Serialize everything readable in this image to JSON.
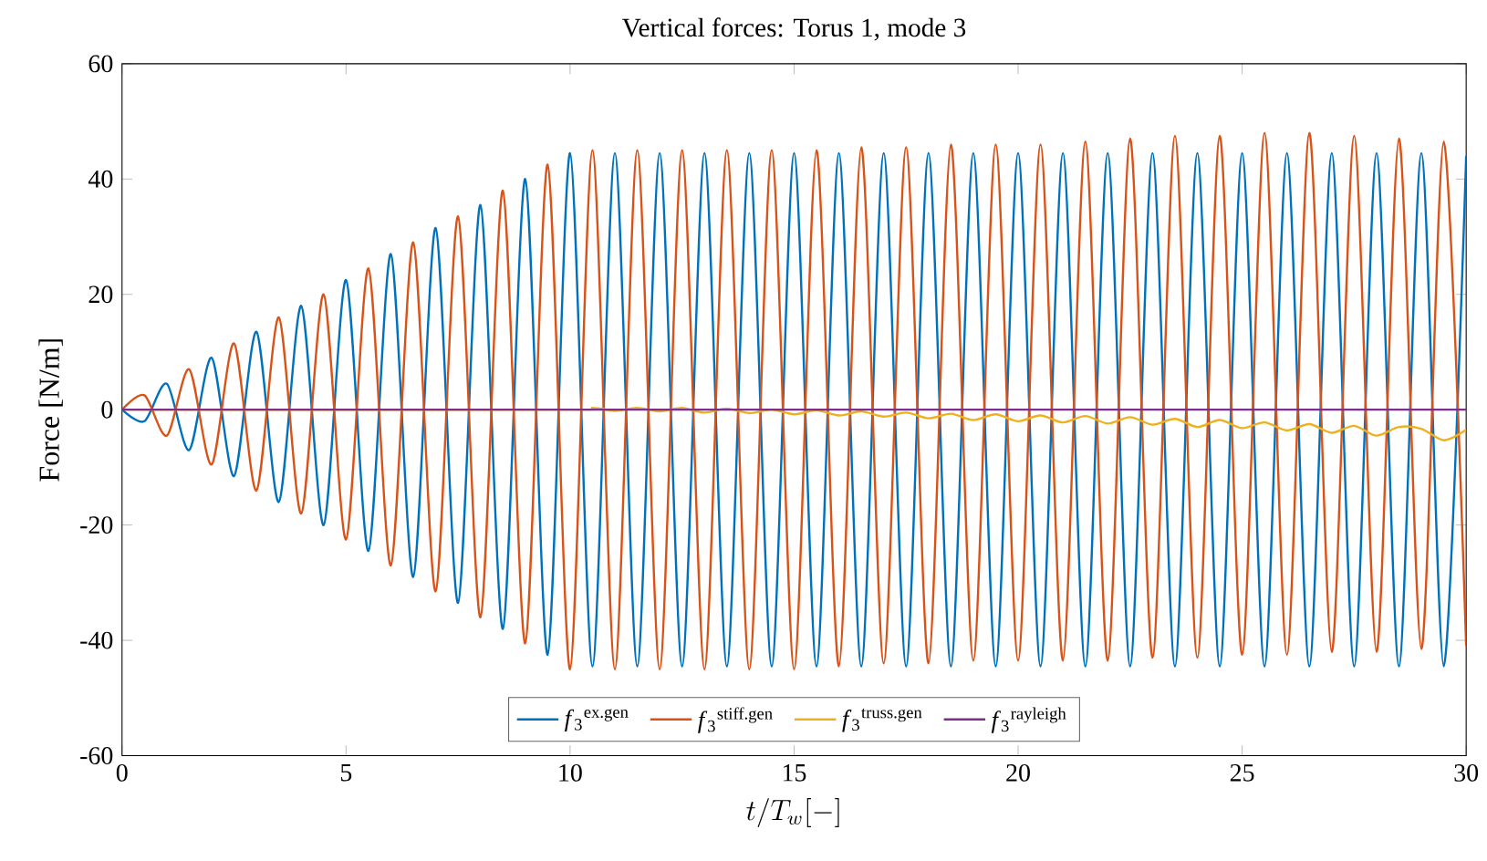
{
  "chart_data": {
    "type": "line",
    "title": "Vertical forces: Torus 1, mode 3",
    "xlabel": "t/T_w[-]",
    "ylabel": "Force [N/m]",
    "x": [
      0,
      0.5,
      1,
      1.5,
      2,
      2.5,
      3,
      3.5,
      4,
      4.5,
      5,
      5.5,
      6,
      6.5,
      7,
      7.5,
      8,
      8.5,
      9,
      9.5,
      10,
      10.5,
      11,
      11.5,
      12,
      12.5,
      13,
      13.5,
      14,
      14.5,
      15,
      15.5,
      16,
      16.5,
      17,
      17.5,
      18,
      18.5,
      19,
      19.5,
      20,
      20.5,
      21,
      21.5,
      22,
      22.5,
      23,
      23.5,
      24,
      24.5,
      25,
      25.5,
      26,
      26.5,
      27,
      27.5,
      28,
      28.5,
      29,
      29.5,
      30
    ],
    "series": [
      {
        "name": "*f*$_{3}$$^{ex.gen}$",
        "color": "#0072bd",
        "values": [
          0,
          -2,
          4.5,
          -7,
          9,
          -11.5,
          13.5,
          -16,
          18,
          -20,
          22.5,
          -24.5,
          27,
          -29,
          31.5,
          -33.5,
          35.5,
          -38,
          40,
          -42.5,
          44.5,
          -44.5,
          44.5,
          -44.5,
          44.5,
          -44.5,
          44.5,
          -44.5,
          44.5,
          -44.5,
          44.5,
          -44.5,
          44.5,
          -44.5,
          44.5,
          -44.5,
          44.5,
          -44.5,
          44.5,
          -44.5,
          44.5,
          -44.5,
          44.5,
          -44.5,
          44.5,
          -44.5,
          44.5,
          -44.5,
          44.5,
          -44.5,
          44.5,
          -44.5,
          44.5,
          -44.5,
          44.5,
          -44.5,
          44.5,
          -44.5,
          44.5,
          -44.5,
          44
        ]
      },
      {
        "name": "*f*$_{3}$$^{stiff.gen}$",
        "color": "#d95319",
        "values": [
          0,
          2.5,
          -4.5,
          7,
          -9.5,
          11.5,
          -14,
          16,
          -18,
          20,
          -22.5,
          24.5,
          -27,
          29,
          -31.5,
          33.5,
          -36,
          38,
          -40.5,
          42.5,
          -45,
          45,
          -45,
          45,
          -45,
          45,
          -45,
          45,
          -45,
          45,
          -45,
          45,
          -44.5,
          45.5,
          -44,
          45.5,
          -44,
          46,
          -43.5,
          46,
          -43.5,
          46,
          -43.5,
          46.5,
          -43.5,
          47,
          -43,
          47.5,
          -43,
          47.5,
          -42.5,
          48,
          -42.5,
          48,
          -42,
          47.5,
          -42,
          47,
          -41.5,
          46.5,
          -41
        ]
      },
      {
        "name": "*f*$_{3}$$^{truss.gen}$",
        "color": "#edb120",
        "x": [
          0,
          10,
          10.5,
          11,
          11.5,
          12,
          12.5,
          13,
          13.5,
          14,
          14.5,
          15,
          15.5,
          16,
          16.5,
          17,
          17.5,
          18,
          18.5,
          19,
          19.5,
          20,
          20.5,
          21,
          21.5,
          22,
          22.5,
          23,
          23.5,
          24,
          24.5,
          25,
          25.5,
          26,
          26.5,
          27,
          27.5,
          28,
          28.5,
          29,
          29.5,
          30
        ],
        "values": [
          0,
          0,
          0.3,
          -0.2,
          0.3,
          -0.3,
          0.3,
          -0.5,
          0.2,
          -0.6,
          0,
          -0.8,
          -0.1,
          -1,
          -0.3,
          -1.2,
          -0.5,
          -1.5,
          -0.7,
          -1.8,
          -0.8,
          -2,
          -1,
          -2.2,
          -1.1,
          -2.4,
          -1.3,
          -2.6,
          -1.6,
          -3,
          -1.8,
          -3.2,
          -2.2,
          -3.6,
          -2.5,
          -4,
          -2.8,
          -4.5,
          -3,
          -3.3,
          -5.3,
          -3.5
        ]
      },
      {
        "name": "*f*$_{3}$$^{rayleigh}$",
        "color": "#7e2f8e",
        "x": [
          0,
          30
        ],
        "values": [
          0,
          0
        ]
      }
    ],
    "xlim": [
      0,
      30
    ],
    "ylim": [
      -60,
      60
    ],
    "xticks": [
      0,
      5,
      10,
      15,
      20,
      25,
      30
    ],
    "yticks": [
      -60,
      -40,
      -20,
      0,
      20,
      40,
      60
    ],
    "legend": "bottom",
    "marker": "none",
    "line_style": "solid"
  }
}
